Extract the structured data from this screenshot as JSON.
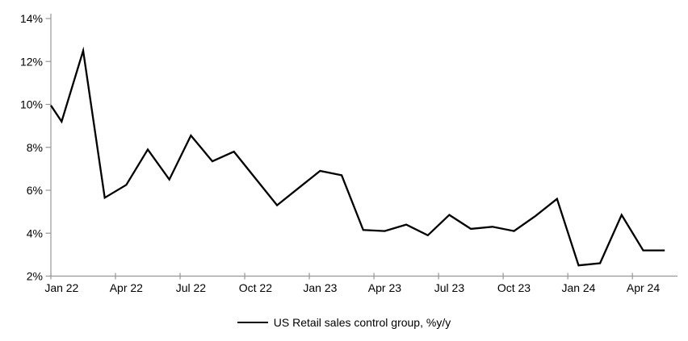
{
  "chart_data": {
    "type": "line",
    "title": "",
    "legend_position": "bottom",
    "grid": false,
    "ylim": [
      2,
      14
    ],
    "ylabel": "",
    "xlabel": "",
    "y_tick_labels": [
      "2%",
      "4%",
      "6%",
      "8%",
      "10%",
      "12%",
      "14%"
    ],
    "y_tick_values": [
      2,
      4,
      6,
      8,
      10,
      12,
      14
    ],
    "x_tick_labels": [
      "Jan 22",
      "Apr 22",
      "Jul 22",
      "Oct 22",
      "Jan 23",
      "Apr 23",
      "Jul 23",
      "Oct 23",
      "Jan 24",
      "Apr 24"
    ],
    "x": [
      "Jan 22",
      "Feb 22",
      "Mar 22",
      "Apr 22",
      "May 22",
      "Jun 22",
      "Jul 22",
      "Aug 22",
      "Sep 22",
      "Oct 22",
      "Nov 22",
      "Dec 22",
      "Jan 23",
      "Feb 23",
      "Mar 23",
      "Apr 23",
      "May 23",
      "Jun 23",
      "Jul 23",
      "Aug 23",
      "Sep 23",
      "Oct 23",
      "Nov 23",
      "Dec 23",
      "Jan 24",
      "Feb 24",
      "Mar 24",
      "Apr 24",
      "May 24"
    ],
    "series": [
      {
        "name": "US Retail sales control group, %y/y",
        "color": "#000000",
        "values": [
          9.2,
          12.5,
          5.65,
          6.25,
          7.9,
          6.5,
          8.55,
          7.35,
          7.8,
          6.55,
          5.3,
          6.1,
          6.9,
          6.7,
          4.15,
          4.1,
          4.4,
          3.9,
          4.85,
          4.2,
          4.3,
          4.1,
          4.8,
          5.6,
          2.5,
          2.6,
          4.85,
          3.2,
          3.2
        ]
      }
    ],
    "lead_in_value_at_left_axis": 9.95,
    "axis_color": "#969696",
    "text_color": "#000000"
  }
}
